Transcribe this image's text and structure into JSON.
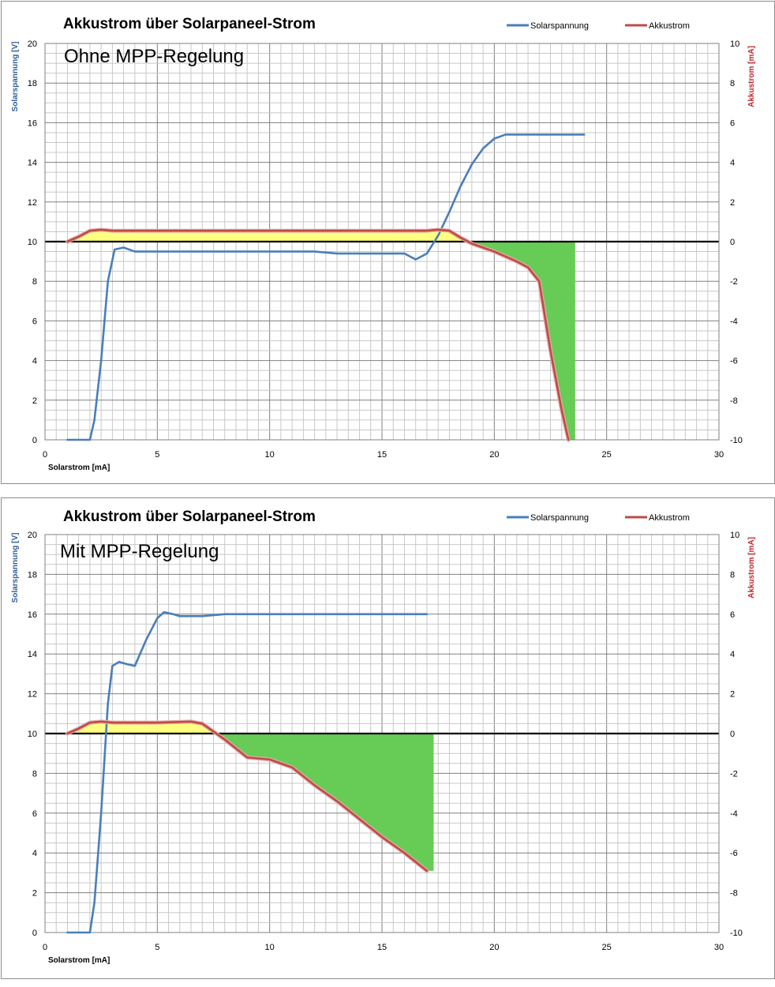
{
  "colors": {
    "solarspannung": "#4a7ebb",
    "akkustrom": "#be4b48",
    "akkustrom_edge": "#e8a9a7",
    "charge_fill": "#ffff80",
    "discharge_fill": "#66cc55",
    "zero_line": "#000000",
    "grid_major": "#808080",
    "grid_minor": "#c8c8c8"
  },
  "chart_data": [
    {
      "type": "line",
      "title": "Akkustrom über Solarpaneel-Strom",
      "subtitle": "Ohne MPP-Regelung",
      "xlabel": "Solarstrom [mA]",
      "ylabel": "Solarspannung [V]",
      "y2label": "Akkustrom [mA]",
      "xlim": [
        0,
        30
      ],
      "ylim": [
        0,
        20
      ],
      "y2lim": [
        -10,
        10
      ],
      "xticks": [
        "0",
        "5",
        "10",
        "15",
        "20",
        "25",
        "30"
      ],
      "yticks": [
        "0",
        "2",
        "4",
        "6",
        "8",
        "10",
        "12",
        "14",
        "16",
        "18",
        "20"
      ],
      "y2ticks": [
        "-10",
        "-8",
        "-6",
        "-4",
        "-2",
        "0",
        "2",
        "4",
        "6",
        "8",
        "10"
      ],
      "grid": true,
      "legend_position": "top-right",
      "legend": [
        "Solarspannung",
        "Akkustrom"
      ],
      "series": [
        {
          "name": "Solarspannung",
          "axis": "left",
          "x": [
            1,
            2,
            2.2,
            2.5,
            2.8,
            3.1,
            3.5,
            4,
            6,
            8,
            10,
            12,
            13,
            15,
            16,
            16.5,
            17,
            17.5,
            18,
            18.5,
            19,
            19.5,
            20,
            20.5,
            21,
            22,
            24
          ],
          "y": [
            0,
            0,
            1,
            4,
            8,
            9.6,
            9.7,
            9.5,
            9.5,
            9.5,
            9.5,
            9.5,
            9.4,
            9.4,
            9.4,
            9.1,
            9.4,
            10.3,
            11.5,
            12.8,
            13.9,
            14.7,
            15.2,
            15.4,
            15.4,
            15.4,
            15.4
          ]
        },
        {
          "name": "Akkustrom",
          "axis": "right",
          "x": [
            1,
            1.5,
            2,
            2.5,
            3,
            5,
            10,
            15,
            17,
            17.5,
            18,
            18.5,
            19,
            20,
            21,
            21.5,
            22,
            22.5,
            23,
            23.3
          ],
          "y": [
            0,
            0.25,
            0.55,
            0.6,
            0.55,
            0.55,
            0.55,
            0.55,
            0.55,
            0.6,
            0.55,
            0.2,
            -0.1,
            -0.5,
            -1.0,
            -1.3,
            -2.0,
            -5.5,
            -8.5,
            -10
          ]
        }
      ]
    },
    {
      "type": "line",
      "title": "Akkustrom über Solarpaneel-Strom",
      "subtitle": "Mit MPP-Regelung",
      "xlabel": "Solarstrom [mA]",
      "ylabel": "Solarspannung [V]",
      "y2label": "Akkustrom [mA]",
      "xlim": [
        0,
        30
      ],
      "ylim": [
        0,
        20
      ],
      "y2lim": [
        -10,
        10
      ],
      "xticks": [
        "0",
        "5",
        "10",
        "15",
        "20",
        "25",
        "30"
      ],
      "yticks": [
        "0",
        "2",
        "4",
        "6",
        "8",
        "10",
        "12",
        "14",
        "16",
        "18",
        "20"
      ],
      "y2ticks": [
        "-10",
        "-8",
        "-6",
        "-4",
        "-2",
        "0",
        "2",
        "4",
        "6",
        "8",
        "10"
      ],
      "grid": true,
      "legend_position": "top-right",
      "legend": [
        "Solarspannung",
        "Akkustrom"
      ],
      "series": [
        {
          "name": "Solarspannung",
          "axis": "left",
          "x": [
            1,
            2,
            2.2,
            2.5,
            2.8,
            3,
            3.3,
            3.6,
            4,
            4.5,
            5,
            5.3,
            5.7,
            6,
            7,
            8,
            9,
            10,
            12,
            14,
            17
          ],
          "y": [
            0,
            0,
            1.5,
            6,
            11.5,
            13.4,
            13.6,
            13.5,
            13.4,
            14.7,
            15.8,
            16.1,
            16.0,
            15.9,
            15.9,
            16.0,
            16.0,
            16.0,
            16.0,
            16.0,
            16.0
          ]
        },
        {
          "name": "Akkustrom",
          "axis": "right",
          "x": [
            1,
            1.5,
            2,
            2.5,
            3,
            5,
            6.5,
            7,
            7.5,
            8,
            9,
            10,
            11,
            12,
            13,
            14,
            15,
            16,
            17
          ],
          "y": [
            0,
            0.25,
            0.55,
            0.6,
            0.55,
            0.55,
            0.6,
            0.5,
            0.1,
            -0.3,
            -1.2,
            -1.3,
            -1.7,
            -2.6,
            -3.4,
            -4.3,
            -5.2,
            -6.0,
            -6.9
          ]
        }
      ]
    }
  ]
}
